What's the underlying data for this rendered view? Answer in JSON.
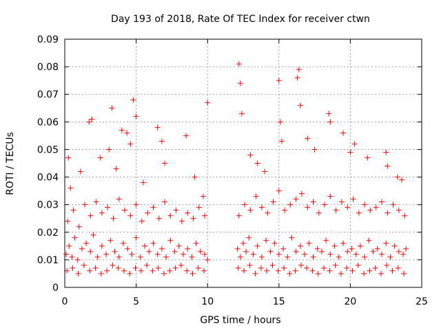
{
  "chart_data": {
    "type": "scatter",
    "title": "Day 193 of 2018, Rate Of TEC Index for receiver ctwn",
    "xlabel": "GPS time / hours",
    "ylabel": "ROTI / TECUs",
    "xlim": [
      0,
      25
    ],
    "ylim": [
      0,
      0.09
    ],
    "xticks": [
      "0",
      "5",
      "10",
      "15",
      "20",
      "25"
    ],
    "yticks": [
      "0",
      "0.01",
      "0.02",
      "0.03",
      "0.04",
      "0.05",
      "0.06",
      "0.07",
      "0.08",
      "0.09"
    ],
    "grid": true,
    "marker": "+",
    "series_color": "#ff0000",
    "series": [
      {
        "name": "ROTI",
        "x": [
          0.1,
          0.3,
          0.5,
          0.7,
          0.9,
          1.2,
          1.5,
          1.8,
          2.0,
          2.3,
          2.6,
          2.9,
          3.2,
          3.5,
          3.8,
          4.1,
          4.4,
          4.7,
          5.0,
          5.3,
          5.6,
          5.9,
          6.2,
          6.5,
          6.8,
          7.1,
          7.4,
          7.7,
          8.0,
          8.3,
          8.6,
          8.9,
          9.2,
          9.5,
          9.8,
          10.0,
          0.2,
          0.6,
          1.0,
          1.4,
          1.8,
          2.2,
          2.6,
          3.0,
          3.4,
          3.8,
          4.2,
          4.6,
          5.0,
          5.4,
          5.8,
          6.2,
          6.6,
          7.0,
          7.4,
          7.8,
          8.2,
          8.6,
          9.0,
          9.4,
          9.8,
          0.15,
          0.55,
          0.95,
          1.35,
          1.75,
          2.15,
          2.55,
          2.95,
          3.35,
          3.75,
          4.15,
          4.55,
          4.95,
          5.35,
          5.75,
          6.15,
          6.55,
          6.95,
          7.35,
          7.75,
          8.15,
          8.55,
          8.95,
          9.35,
          9.75,
          0.4,
          1.1,
          1.7,
          2.5,
          3.3,
          3.6,
          4.0,
          4.6,
          4.8,
          5.0,
          5.5,
          6.5,
          6.8,
          7.0,
          8.5,
          9.1,
          9.7,
          10.0,
          0.25,
          1.9,
          3.1,
          4.35,
          12.1,
          12.3,
          12.5,
          12.7,
          12.9,
          13.2,
          13.5,
          13.8,
          14.1,
          14.4,
          14.7,
          15.0,
          15.3,
          15.6,
          15.9,
          16.2,
          16.5,
          16.8,
          17.1,
          17.4,
          17.7,
          18.0,
          18.3,
          18.6,
          18.9,
          19.2,
          19.5,
          19.8,
          20.1,
          20.4,
          20.7,
          21.0,
          21.3,
          21.6,
          21.9,
          22.2,
          22.5,
          22.8,
          23.1,
          23.4,
          23.7,
          23.9,
          12.2,
          12.6,
          13.0,
          13.4,
          13.8,
          14.2,
          14.6,
          15.0,
          15.4,
          15.8,
          16.2,
          16.6,
          17.0,
          17.4,
          17.8,
          18.2,
          18.6,
          19.0,
          19.4,
          19.8,
          20.2,
          20.6,
          21.0,
          21.4,
          21.8,
          22.2,
          22.6,
          23.0,
          23.4,
          23.8,
          12.15,
          12.55,
          12.95,
          13.35,
          13.75,
          14.15,
          14.55,
          14.95,
          15.35,
          15.75,
          16.15,
          16.55,
          16.95,
          17.35,
          17.75,
          18.15,
          18.55,
          18.95,
          19.35,
          19.75,
          20.15,
          20.55,
          20.95,
          21.35,
          21.75,
          22.15,
          22.55,
          22.95,
          23.35,
          23.75,
          12.2,
          12.3,
          12.4,
          13.0,
          13.5,
          14.0,
          15.0,
          15.1,
          15.2,
          16.3,
          16.4,
          16.5,
          17.0,
          17.5,
          18.5,
          18.6,
          19.5,
          20.0,
          20.3,
          21.2,
          22.5,
          22.6,
          23.3,
          23.6
        ],
        "y": [
          0.012,
          0.015,
          0.011,
          0.018,
          0.01,
          0.014,
          0.016,
          0.013,
          0.019,
          0.011,
          0.015,
          0.012,
          0.017,
          0.013,
          0.011,
          0.016,
          0.014,
          0.012,
          0.018,
          0.011,
          0.015,
          0.013,
          0.016,
          0.012,
          0.014,
          0.011,
          0.017,
          0.013,
          0.015,
          0.012,
          0.014,
          0.011,
          0.016,
          0.013,
          0.012,
          0.01,
          0.024,
          0.028,
          0.022,
          0.03,
          0.026,
          0.031,
          0.027,
          0.029,
          0.025,
          0.032,
          0.028,
          0.026,
          0.03,
          0.024,
          0.027,
          0.029,
          0.025,
          0.031,
          0.026,
          0.028,
          0.024,
          0.027,
          0.025,
          0.029,
          0.026,
          0.006,
          0.007,
          0.005,
          0.008,
          0.006,
          0.007,
          0.005,
          0.006,
          0.008,
          0.007,
          0.006,
          0.005,
          0.007,
          0.006,
          0.008,
          0.006,
          0.007,
          0.005,
          0.006,
          0.007,
          0.008,
          0.006,
          0.005,
          0.007,
          0.006,
          0.036,
          0.042,
          0.06,
          0.047,
          0.065,
          0.043,
          0.057,
          0.052,
          0.068,
          0.062,
          0.038,
          0.058,
          0.053,
          0.045,
          0.055,
          0.04,
          0.033,
          0.067,
          0.047,
          0.061,
          0.05,
          0.056,
          0.014,
          0.011,
          0.016,
          0.013,
          0.018,
          0.012,
          0.015,
          0.011,
          0.017,
          0.013,
          0.016,
          0.012,
          0.014,
          0.011,
          0.018,
          0.013,
          0.015,
          0.012,
          0.016,
          0.011,
          0.014,
          0.013,
          0.017,
          0.012,
          0.015,
          0.011,
          0.016,
          0.013,
          0.014,
          0.012,
          0.015,
          0.011,
          0.017,
          0.013,
          0.014,
          0.012,
          0.016,
          0.011,
          0.015,
          0.013,
          0.012,
          0.014,
          0.026,
          0.03,
          0.028,
          0.033,
          0.029,
          0.027,
          0.031,
          0.035,
          0.028,
          0.03,
          0.032,
          0.034,
          0.029,
          0.031,
          0.027,
          0.03,
          0.033,
          0.028,
          0.031,
          0.029,
          0.032,
          0.027,
          0.03,
          0.028,
          0.029,
          0.031,
          0.027,
          0.03,
          0.028,
          0.026,
          0.007,
          0.006,
          0.008,
          0.005,
          0.007,
          0.006,
          0.008,
          0.006,
          0.007,
          0.005,
          0.006,
          0.008,
          0.007,
          0.006,
          0.005,
          0.007,
          0.006,
          0.008,
          0.005,
          0.007,
          0.006,
          0.008,
          0.005,
          0.006,
          0.007,
          0.005,
          0.008,
          0.006,
          0.007,
          0.005,
          0.081,
          0.074,
          0.063,
          0.048,
          0.045,
          0.042,
          0.075,
          0.06,
          0.053,
          0.076,
          0.079,
          0.066,
          0.054,
          0.05,
          0.063,
          0.06,
          0.056,
          0.049,
          0.052,
          0.047,
          0.049,
          0.044,
          0.04,
          0.039
        ]
      }
    ]
  }
}
